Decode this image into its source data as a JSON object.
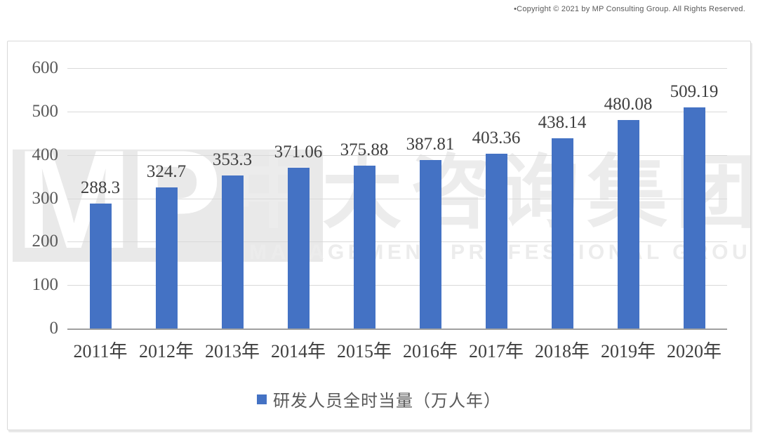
{
  "page": {
    "copyright": "•Copyright © 2021 by MP Consulting Group. All Rights Reserved."
  },
  "watermark": {
    "logo_text": "MP",
    "cn_text": "中大咨询集团",
    "en_text": "MANAGEMENT PROFESSIONAL GROUP"
  },
  "chart_data": {
    "type": "bar",
    "title": "",
    "categories": [
      "2011年",
      "2012年",
      "2013年",
      "2014年",
      "2015年",
      "2016年",
      "2017年",
      "2018年",
      "2019年",
      "2020年"
    ],
    "series": [
      {
        "name": "研发人员全时当量（万人年）",
        "values": [
          288.3,
          324.7,
          353.3,
          371.06,
          375.88,
          387.81,
          403.36,
          438.14,
          480.08,
          509.19
        ]
      }
    ],
    "data_labels": [
      "288.3",
      "324.7",
      "353.3",
      "371.06",
      "375.88",
      "387.81",
      "403.36",
      "438.14",
      "480.08",
      "509.19"
    ],
    "xlabel": "",
    "ylabel": "",
    "ylim": [
      0,
      600
    ],
    "yticks": [
      600,
      500,
      400,
      300,
      200,
      100,
      0
    ],
    "grid": true,
    "legend_position": "bottom",
    "bar_color": "#4472c4",
    "gridline_color": "#d9d9d9"
  },
  "legend": {
    "label": "研发人员全时当量（万人年）",
    "marker_color": "#4472c4"
  }
}
